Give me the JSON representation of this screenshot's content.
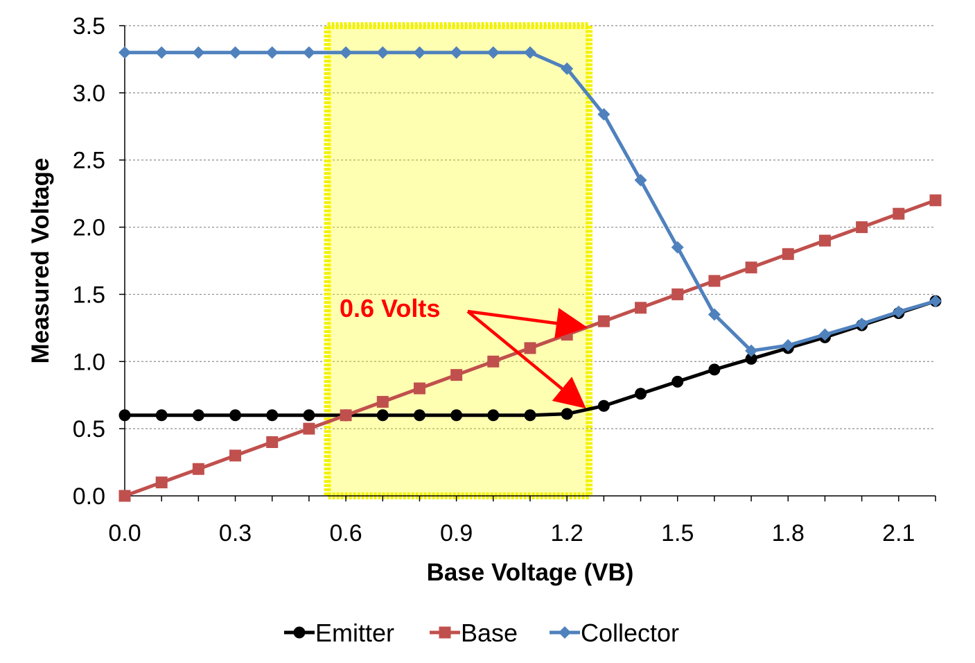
{
  "chart_data": {
    "type": "line",
    "title": "",
    "xlabel": "Base Voltage (VB)",
    "ylabel": "Measured Voltage",
    "xlim": [
      0,
      2.2
    ],
    "ylim": [
      0,
      3.5
    ],
    "xticks": [
      "0.0",
      "0.3",
      "0.6",
      "0.9",
      "1.2",
      "1.5",
      "1.8",
      "2.1"
    ],
    "yticks": [
      "0.0",
      "0.5",
      "1.0",
      "1.5",
      "2.0",
      "2.5",
      "3.0",
      "3.5"
    ],
    "grid": "horizontal dotted",
    "legend_position": "bottom",
    "x": [
      0.0,
      0.1,
      0.2,
      0.3,
      0.4,
      0.5,
      0.6,
      0.7,
      0.8,
      0.9,
      1.0,
      1.1,
      1.2,
      1.3,
      1.4,
      1.5,
      1.6,
      1.7,
      1.8,
      1.9,
      2.0,
      2.1,
      2.2
    ],
    "series": [
      {
        "name": "Emitter",
        "color": "#000000",
        "marker": "circle",
        "values": [
          0.6,
          0.6,
          0.6,
          0.6,
          0.6,
          0.6,
          0.6,
          0.6,
          0.6,
          0.6,
          0.6,
          0.6,
          0.61,
          0.67,
          0.76,
          0.85,
          0.94,
          1.02,
          1.1,
          1.18,
          1.27,
          1.36,
          1.45
        ]
      },
      {
        "name": "Base",
        "color": "#c0504d",
        "marker": "square",
        "values": [
          0.0,
          0.1,
          0.2,
          0.3,
          0.4,
          0.5,
          0.6,
          0.7,
          0.8,
          0.9,
          1.0,
          1.1,
          1.2,
          1.3,
          1.4,
          1.5,
          1.6,
          1.7,
          1.8,
          1.9,
          2.0,
          2.1,
          2.2
        ]
      },
      {
        "name": "Collector",
        "color": "#4f81bd",
        "marker": "diamond",
        "values": [
          3.3,
          3.3,
          3.3,
          3.3,
          3.3,
          3.3,
          3.3,
          3.3,
          3.3,
          3.3,
          3.3,
          3.3,
          3.18,
          2.84,
          2.35,
          1.85,
          1.35,
          1.08,
          1.12,
          1.2,
          1.28,
          1.37,
          1.45
        ]
      }
    ],
    "highlight": {
      "x_range": [
        0.55,
        1.26
      ],
      "y_range": [
        0,
        3.5
      ],
      "fill": "#ffff00",
      "border": "#f2f200"
    },
    "annotation": {
      "text": "0.6 Volts",
      "color": "#ff0000",
      "arrows_to": [
        {
          "x": 1.25,
          "y": 1.27
        },
        {
          "x": 1.25,
          "y": 0.69
        }
      ]
    }
  }
}
